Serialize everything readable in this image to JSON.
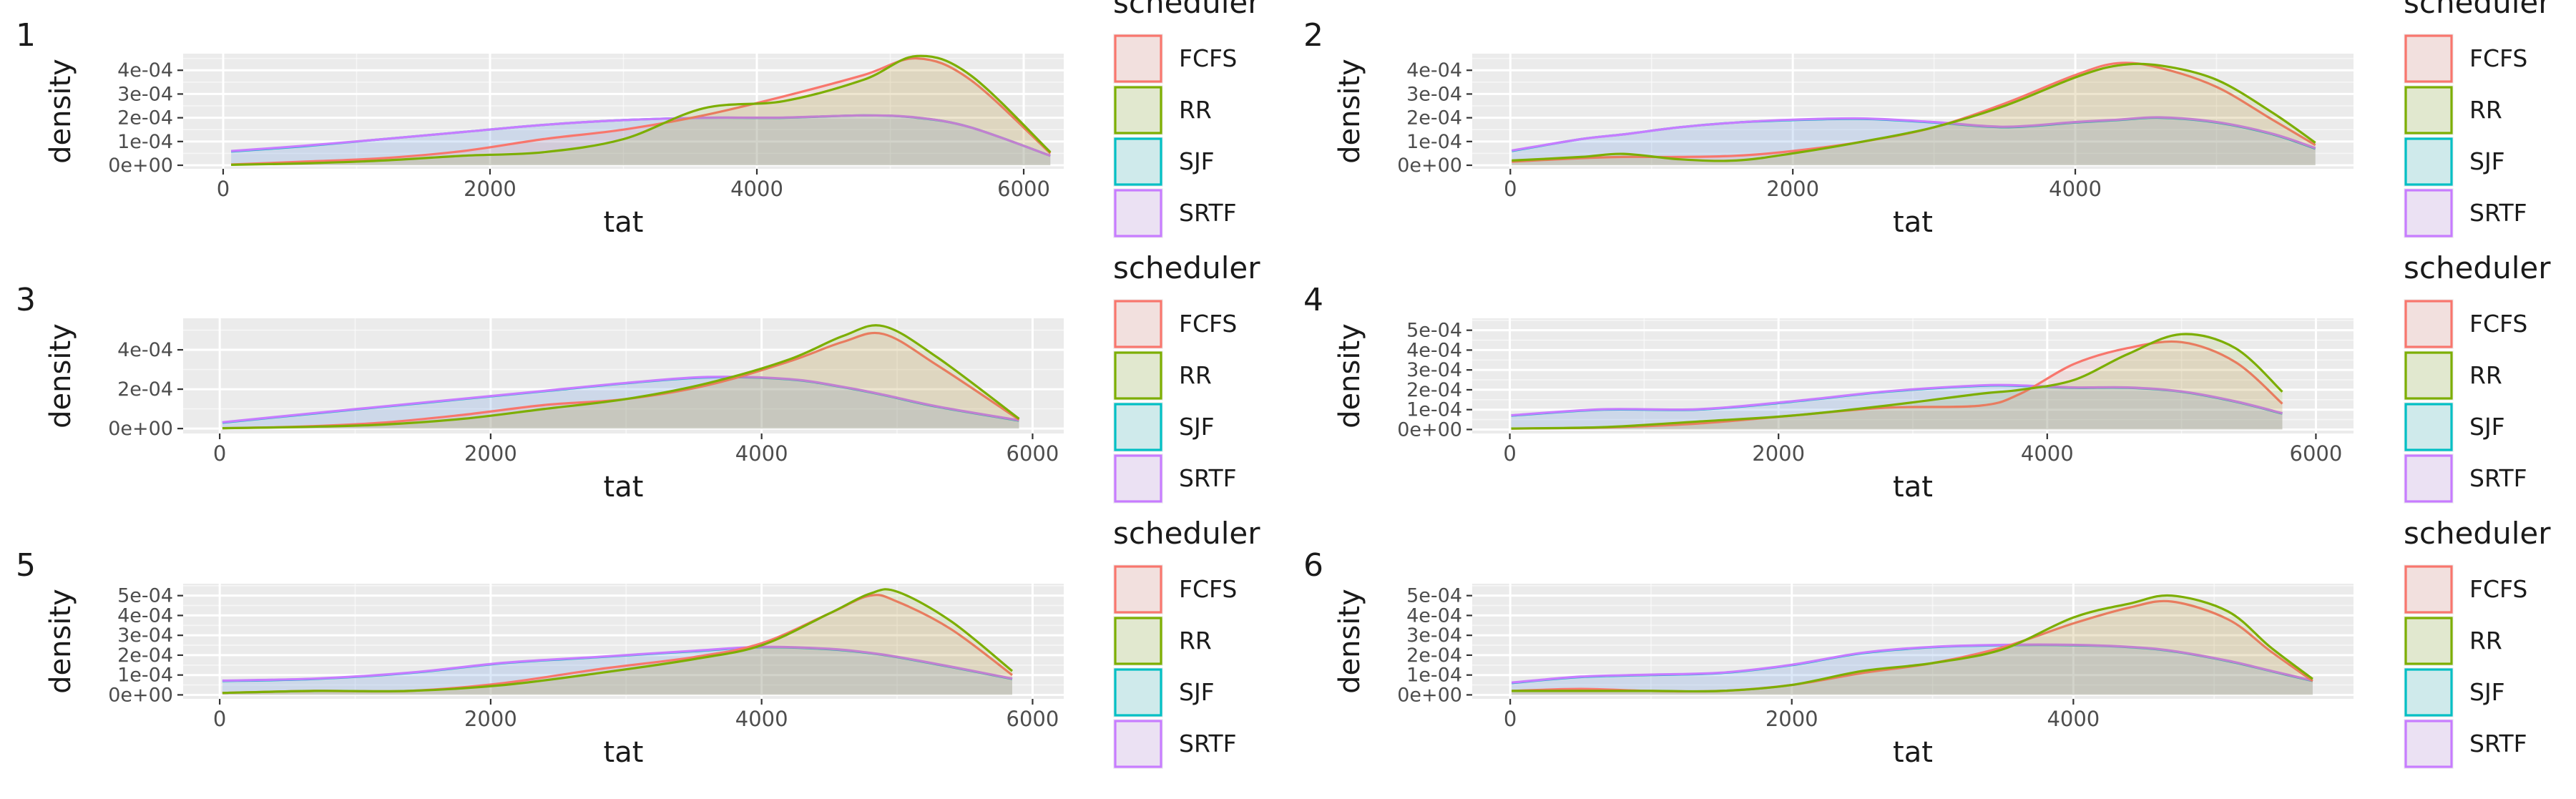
{
  "figure": {
    "legend_title": "scheduler",
    "legend_items": [
      "FCFS",
      "RR",
      "SJF",
      "SRTF"
    ],
    "x_axis_title": "tat",
    "y_axis_title": "density",
    "colors": {
      "FCFS": "#F8766D",
      "RR": "#7CAE00",
      "SJF": "#00BFC4",
      "SRTF": "#C77CFF",
      "panel_bg": "#EBEBEB",
      "grid_major": "#FFFFFF"
    }
  },
  "chart_data": [
    {
      "type": "area",
      "tag": "1",
      "xlabel": "tat",
      "ylabel": "density",
      "xlim": [
        -300,
        6300
      ],
      "ylim": [
        -1.5e-05,
        0.00047
      ],
      "xticks": [
        0,
        2000,
        4000,
        6000
      ],
      "xtick_labels": [
        "0",
        "2000",
        "4000",
        "6000"
      ],
      "yticks": [
        0,
        0.0001,
        0.0002,
        0.0003,
        0.0004
      ],
      "ytick_labels": [
        "0e+00",
        "1e-04",
        "2e-04",
        "3e-04",
        "4e-04"
      ],
      "x": [
        60,
        600,
        1200,
        1800,
        2400,
        3000,
        3600,
        4200,
        4800,
        5200,
        5600,
        6200
      ],
      "series": [
        {
          "name": "FCFS",
          "values": [
            3e-06,
            1.5e-05,
            3e-05,
            6e-05,
            0.00011,
            0.00015,
            0.00021,
            0.00029,
            0.00038,
            0.00045,
            0.00036,
            5e-05
          ]
        },
        {
          "name": "RR",
          "values": [
            2e-06,
            8e-06,
            2e-05,
            4e-05,
            5.5e-05,
            0.00011,
            0.00024,
            0.00027,
            0.00036,
            0.00046,
            0.00038,
            5.5e-05
          ]
        },
        {
          "name": "SJF",
          "values": [
            5.8e-05,
            8e-05,
            0.00011,
            0.00014,
            0.00017,
            0.00019,
            0.0002,
            0.0002,
            0.00021,
            0.0002,
            0.00016,
            4e-05
          ]
        },
        {
          "name": "SRTF",
          "values": [
            6e-05,
            8.2e-05,
            0.00011,
            0.00014,
            0.00017,
            0.00019,
            0.0002,
            0.000201,
            0.00021,
            0.000201,
            0.00016,
            4e-05
          ]
        }
      ]
    },
    {
      "type": "area",
      "tag": "2",
      "xlabel": "tat",
      "ylabel": "density",
      "xlim": [
        -270,
        5970
      ],
      "ylim": [
        -1.5e-05,
        0.00047
      ],
      "xticks": [
        0,
        2000,
        4000
      ],
      "xtick_labels": [
        "0",
        "2000",
        "4000"
      ],
      "yticks": [
        0,
        0.0001,
        0.0002,
        0.0003,
        0.0004
      ],
      "ytick_labels": [
        "0e+00",
        "1e-04",
        "2e-04",
        "3e-04",
        "4e-04"
      ],
      "x": [
        10,
        500,
        800,
        1200,
        1600,
        2000,
        2500,
        3000,
        3500,
        4000,
        4300,
        4600,
        5000,
        5400,
        5700
      ],
      "series": [
        {
          "name": "FCFS",
          "values": [
            1.5e-05,
            3e-05,
            3.5e-05,
            3.5e-05,
            4e-05,
            6e-05,
            0.0001,
            0.00016,
            0.00026,
            0.00038,
            0.00043,
            0.00041,
            0.00033,
            0.00019,
            8.5e-05
          ]
        },
        {
          "name": "RR",
          "values": [
            2e-05,
            3.5e-05,
            4.8e-05,
            2.5e-05,
            2e-05,
            5e-05,
            0.0001,
            0.00016,
            0.00025,
            0.00037,
            0.00042,
            0.00042,
            0.00036,
            0.00022,
            9.5e-05
          ]
        },
        {
          "name": "SJF",
          "values": [
            6e-05,
            0.00011,
            0.00013,
            0.00016,
            0.00018,
            0.00019,
            0.000195,
            0.00018,
            0.00016,
            0.00018,
            0.00019,
            0.0002,
            0.00018,
            0.00013,
            7e-05
          ]
        },
        {
          "name": "SRTF",
          "values": [
            6.2e-05,
            0.00011,
            0.00013,
            0.00016,
            0.00018,
            0.000192,
            0.000197,
            0.000182,
            0.000162,
            0.000182,
            0.000192,
            0.000202,
            0.000182,
            0.000132,
            7.2e-05
          ]
        }
      ]
    },
    {
      "type": "area",
      "tag": "3",
      "xlabel": "tat",
      "ylabel": "density",
      "xlim": [
        -270,
        6230
      ],
      "ylim": [
        -2.5e-05,
        0.00056
      ],
      "xticks": [
        0,
        2000,
        4000,
        6000
      ],
      "xtick_labels": [
        "0",
        "2000",
        "4000",
        "6000"
      ],
      "yticks": [
        0,
        0.0002,
        0.0004
      ],
      "ytick_labels": [
        "0e+00",
        "2e-04",
        "4e-04"
      ],
      "x": [
        20,
        600,
        1200,
        1800,
        2400,
        3000,
        3600,
        4200,
        4600,
        4900,
        5300,
        5900
      ],
      "series": [
        {
          "name": "FCFS",
          "values": [
            2e-06,
            1e-05,
            3e-05,
            7e-05,
            0.00012,
            0.00015,
            0.00022,
            0.00034,
            0.00044,
            0.00048,
            0.00032,
            4.5e-05
          ]
        },
        {
          "name": "RR",
          "values": [
            2e-06,
            8e-06,
            2e-05,
            5e-05,
            0.0001,
            0.00015,
            0.00023,
            0.00035,
            0.00047,
            0.00052,
            0.00036,
            5e-05
          ]
        },
        {
          "name": "SJF",
          "values": [
            3e-05,
            7e-05,
            0.00011,
            0.00015,
            0.00019,
            0.00023,
            0.00026,
            0.00025,
            0.00021,
            0.00017,
            0.00011,
            4e-05
          ]
        },
        {
          "name": "SRTF",
          "values": [
            3.2e-05,
            7.2e-05,
            0.000112,
            0.000152,
            0.000192,
            0.000232,
            0.000262,
            0.000252,
            0.000212,
            0.000172,
            0.000112,
            4.2e-05
          ]
        }
      ]
    },
    {
      "type": "area",
      "tag": "4",
      "xlabel": "tat",
      "ylabel": "density",
      "xlim": [
        -280,
        6280
      ],
      "ylim": [
        -2e-05,
        0.00056
      ],
      "xticks": [
        0,
        2000,
        4000,
        6000
      ],
      "xtick_labels": [
        "0",
        "2000",
        "4000",
        "6000"
      ],
      "yticks": [
        0,
        0.0001,
        0.0002,
        0.0003,
        0.0004,
        0.0005
      ],
      "ytick_labels": [
        "0e+00",
        "1e-04",
        "2e-04",
        "3e-04",
        "4e-04",
        "5e-04"
      ],
      "x": [
        10,
        700,
        1400,
        2100,
        2800,
        3500,
        3800,
        4200,
        4600,
        5000,
        5400,
        5750
      ],
      "series": [
        {
          "name": "FCFS",
          "values": [
            5e-06,
            1e-05,
            3e-05,
            7e-05,
            0.00011,
            0.00012,
            0.00018,
            0.00033,
            0.00041,
            0.00044,
            0.00034,
            0.00013
          ]
        },
        {
          "name": "RR",
          "values": [
            5e-06,
            1.2e-05,
            4e-05,
            7e-05,
            0.00012,
            0.00018,
            0.0002,
            0.00025,
            0.00038,
            0.00048,
            0.00041,
            0.00019
          ]
        },
        {
          "name": "SJF",
          "values": [
            7e-05,
            0.0001,
            0.0001,
            0.00014,
            0.00019,
            0.00022,
            0.00022,
            0.00021,
            0.00021,
            0.00019,
            0.00014,
            8e-05
          ]
        },
        {
          "name": "SRTF",
          "values": [
            7.2e-05,
            0.000102,
            0.000102,
            0.000142,
            0.000192,
            0.000222,
            0.000222,
            0.000212,
            0.000212,
            0.000192,
            0.000142,
            8.2e-05
          ]
        }
      ]
    },
    {
      "type": "area",
      "tag": "5",
      "xlabel": "tat",
      "ylabel": "density",
      "xlim": [
        -270,
        6230
      ],
      "ylim": [
        -2e-05,
        0.00056
      ],
      "xticks": [
        0,
        2000,
        4000,
        6000
      ],
      "xtick_labels": [
        "0",
        "2000",
        "4000",
        "6000"
      ],
      "yticks": [
        0,
        0.0001,
        0.0002,
        0.0003,
        0.0004,
        0.0005
      ],
      "ytick_labels": [
        "0e+00",
        "1e-04",
        "2e-04",
        "3e-04",
        "4e-04",
        "5e-04"
      ],
      "x": [
        20,
        700,
        1400,
        2100,
        2800,
        3500,
        4000,
        4500,
        4800,
        5000,
        5400,
        5850
      ],
      "series": [
        {
          "name": "FCFS",
          "values": [
            1e-05,
            2e-05,
            2e-05,
            6e-05,
            0.00013,
            0.00019,
            0.00026,
            0.00041,
            0.0005,
            0.00047,
            0.00033,
            0.0001
          ]
        },
        {
          "name": "RR",
          "values": [
            1e-05,
            2e-05,
            2e-05,
            5e-05,
            0.00011,
            0.00018,
            0.00025,
            0.00041,
            0.00051,
            0.00052,
            0.00037,
            0.00012
          ]
        },
        {
          "name": "SJF",
          "values": [
            7e-05,
            8e-05,
            0.00011,
            0.00016,
            0.00019,
            0.00022,
            0.00024,
            0.00023,
            0.00021,
            0.00019,
            0.00014,
            8e-05
          ]
        },
        {
          "name": "SRTF",
          "values": [
            7.2e-05,
            8.2e-05,
            0.000112,
            0.000162,
            0.000192,
            0.000222,
            0.000242,
            0.000232,
            0.000212,
            0.000192,
            0.000142,
            8.2e-05
          ]
        }
      ]
    },
    {
      "type": "area",
      "tag": "6",
      "xlabel": "tat",
      "ylabel": "density",
      "xlim": [
        -270,
        5990
      ],
      "ylim": [
        -2e-05,
        0.00056
      ],
      "xticks": [
        0,
        2000,
        4000
      ],
      "xtick_labels": [
        "0",
        "2000",
        "4000"
      ],
      "yticks": [
        0,
        0.0001,
        0.0002,
        0.0003,
        0.0004,
        0.0005
      ],
      "ytick_labels": [
        "0e+00",
        "1e-04",
        "2e-04",
        "3e-04",
        "4e-04",
        "5e-04"
      ],
      "x": [
        10,
        500,
        1000,
        1500,
        2000,
        2500,
        3000,
        3500,
        4000,
        4400,
        4700,
        5100,
        5400,
        5700
      ],
      "series": [
        {
          "name": "FCFS",
          "values": [
            2e-05,
            3e-05,
            2e-05,
            2e-05,
            5e-05,
            0.00011,
            0.00016,
            0.00024,
            0.00036,
            0.00044,
            0.00047,
            0.00038,
            0.00022,
            7e-05
          ]
        },
        {
          "name": "RR",
          "values": [
            2e-05,
            2e-05,
            2e-05,
            2e-05,
            5e-05,
            0.00012,
            0.00016,
            0.00023,
            0.00039,
            0.00046,
            0.0005,
            0.00042,
            0.00024,
            8e-05
          ]
        },
        {
          "name": "SJF",
          "values": [
            6e-05,
            9e-05,
            0.0001,
            0.00011,
            0.00015,
            0.00021,
            0.00024,
            0.00025,
            0.00025,
            0.00024,
            0.00022,
            0.00017,
            0.00012,
            7e-05
          ]
        },
        {
          "name": "SRTF",
          "values": [
            6.2e-05,
            9.2e-05,
            0.000102,
            0.000112,
            0.000152,
            0.000212,
            0.000242,
            0.000252,
            0.000252,
            0.000242,
            0.000222,
            0.000172,
            0.000122,
            7.2e-05
          ]
        }
      ]
    }
  ]
}
